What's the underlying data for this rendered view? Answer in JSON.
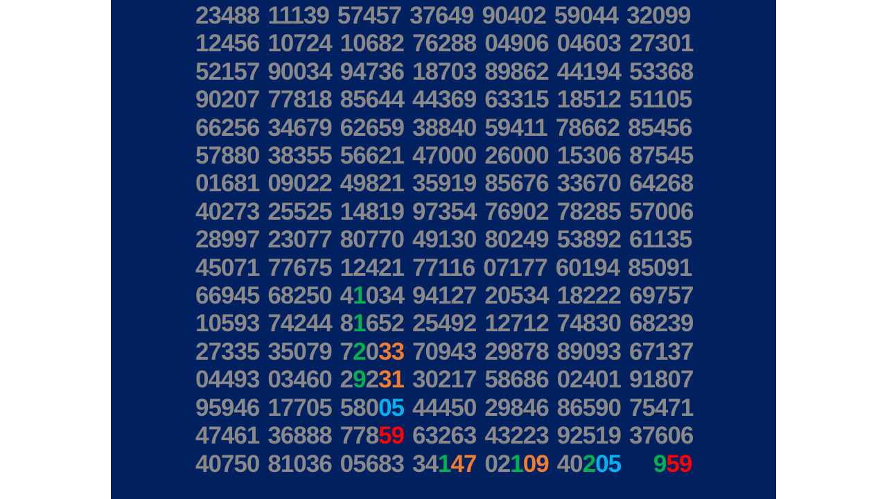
{
  "slide": {
    "background_color": "#002060",
    "margin_color": "#ffffff"
  },
  "palette": {
    "gray": "#898989",
    "green": "#00B050",
    "orange": "#ED7D31",
    "blue": "#00B0F0",
    "red": "#FF0000"
  },
  "number_table": {
    "description": "random-digit table, 17 rows x 7 five-digit groups",
    "rows": [
      [
        "23488",
        "11139",
        "57457",
        "37649",
        "90402",
        "59044",
        "32099"
      ],
      [
        "12456",
        "10724",
        "10682",
        "76288",
        "04906",
        "04603",
        "27301"
      ],
      [
        "52157",
        "90034",
        "94736",
        "18703",
        "89862",
        "44194",
        "53368"
      ],
      [
        "90207",
        "77818",
        "85644",
        "44369",
        "63315",
        "18512",
        "51105"
      ],
      [
        "66256",
        "34679",
        "62659",
        "38840",
        "59411",
        "78662",
        "85456"
      ],
      [
        "57880",
        "38355",
        "56621",
        "47000",
        "26000",
        "15306",
        "87545"
      ],
      [
        "01681",
        "09022",
        "49821",
        "35919",
        "85676",
        "33670",
        "64268"
      ],
      [
        "40273",
        "25525",
        "14819",
        "97354",
        "76902",
        "78285",
        "57006"
      ],
      [
        "28997",
        "23077",
        "80770",
        "49130",
        "80249",
        "53892",
        "61135"
      ],
      [
        "45071",
        "77675",
        "12421",
        "77116",
        "07177",
        "60194",
        "85091"
      ],
      [
        "66945",
        "68250",
        [
          [
            "4",
            "gray"
          ],
          [
            "1",
            "green"
          ],
          [
            "034",
            "gray"
          ]
        ],
        "94127",
        "20534",
        "18222",
        "69757"
      ],
      [
        "10593",
        "74244",
        [
          [
            "8",
            "gray"
          ],
          [
            "1",
            "green"
          ],
          [
            "652",
            "gray"
          ]
        ],
        "25492",
        "12712",
        "74830",
        "68239"
      ],
      [
        "27335",
        "35079",
        [
          [
            "7",
            "gray"
          ],
          [
            "2",
            "green"
          ],
          [
            "0",
            "gray"
          ],
          [
            "33",
            "orange"
          ]
        ],
        "70943",
        "29878",
        "89093",
        "67137"
      ],
      [
        "04493",
        "03460",
        [
          [
            "2",
            "gray"
          ],
          [
            "9",
            "green"
          ],
          [
            "2",
            "gray"
          ],
          [
            "31",
            "orange"
          ]
        ],
        "30217",
        "58686",
        "02401",
        "91807"
      ],
      [
        "95946",
        "17705",
        [
          [
            "580",
            "gray"
          ],
          [
            "05",
            "blue"
          ]
        ],
        "44450",
        "29846",
        "86590",
        "75471"
      ],
      [
        "47461",
        "36888",
        [
          [
            "778",
            "gray"
          ],
          [
            "59",
            "red"
          ]
        ],
        "63263",
        "43223",
        "92519",
        "37606"
      ],
      [
        "40750",
        "81036",
        "05683",
        [
          [
            "34",
            "gray"
          ],
          [
            "1",
            "green"
          ],
          [
            "47",
            "orange"
          ]
        ],
        [
          [
            "02",
            "gray"
          ],
          [
            "1",
            "green"
          ],
          [
            "09",
            "orange"
          ]
        ],
        [
          [
            "40",
            "gray"
          ],
          [
            "2",
            "green"
          ],
          [
            "05",
            "blue"
          ]
        ],
        [
          [
            "    ",
            "gray"
          ],
          [
            "9",
            "green"
          ],
          [
            "59",
            "red"
          ]
        ]
      ]
    ]
  }
}
